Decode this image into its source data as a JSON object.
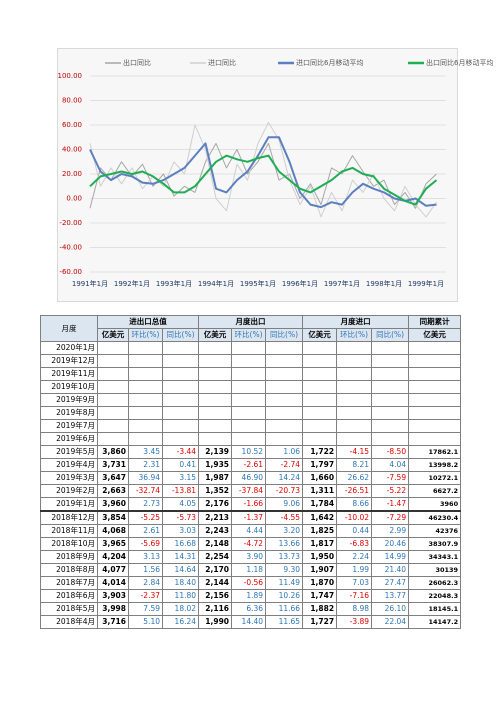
{
  "chart_data": {
    "type": "line",
    "categories": [
      "1991年1月",
      null,
      null,
      null,
      "1992年1月",
      null,
      null,
      null,
      "1993年1月",
      null,
      null,
      null,
      "1994年1月",
      null,
      null,
      null,
      "1995年1月",
      null,
      null,
      null,
      "1996年1月",
      null,
      null,
      null,
      "1997年1月",
      null,
      null,
      null,
      "1998年1月",
      null,
      null,
      null,
      "1999年1月",
      null
    ],
    "series": [
      {
        "name": "出口同比",
        "color": "#a6a6a6",
        "width": 1,
        "values": [
          -8,
          25,
          15,
          30,
          18,
          28,
          10,
          20,
          2,
          10,
          5,
          30,
          45,
          25,
          40,
          20,
          30,
          45,
          15,
          20,
          0,
          12,
          -5,
          25,
          20,
          35,
          22,
          10,
          15,
          -5,
          5,
          -8,
          12,
          20
        ]
      },
      {
        "name": "进口同比",
        "color": "#cfcfcf",
        "width": 1,
        "values": [
          45,
          10,
          25,
          12,
          25,
          8,
          18,
          10,
          30,
          20,
          60,
          40,
          0,
          -10,
          28,
          15,
          45,
          62,
          48,
          15,
          -5,
          10,
          -15,
          5,
          -10,
          15,
          5,
          20,
          0,
          -10,
          10,
          -5,
          -15,
          -3
        ]
      },
      {
        "name": "进口同比6月移动平均",
        "color": "#5b7fbf",
        "width": 2,
        "values": [
          40,
          22,
          15,
          20,
          18,
          13,
          12,
          15,
          20,
          25,
          35,
          45,
          8,
          5,
          15,
          22,
          35,
          50,
          50,
          30,
          5,
          -5,
          -7,
          -3,
          -5,
          5,
          12,
          8,
          5,
          0,
          -2,
          0,
          -6,
          -5
        ]
      },
      {
        "name": "出口同比6月移动平均",
        "color": "#1fae54",
        "width": 2,
        "values": [
          10,
          18,
          20,
          22,
          20,
          22,
          18,
          12,
          5,
          5,
          10,
          20,
          30,
          35,
          32,
          30,
          33,
          35,
          22,
          15,
          8,
          5,
          10,
          15,
          22,
          25,
          20,
          18,
          8,
          3,
          -2,
          -5,
          8,
          15
        ]
      }
    ],
    "ylim": [
      -60,
      100
    ],
    "yticks": [
      {
        "value": 100,
        "label": "100.00"
      },
      {
        "value": 80,
        "label": "80.00"
      },
      {
        "value": 60,
        "label": "60.00"
      },
      {
        "value": 40,
        "label": "40.00"
      },
      {
        "value": 20,
        "label": "20.00"
      },
      {
        "value": 0,
        "label": "0.00"
      },
      {
        "value": -20,
        "label": "-20.00"
      },
      {
        "value": -40,
        "label": "-40.00"
      },
      {
        "value": -60,
        "label": "-60.00"
      }
    ],
    "grid": true,
    "legend": "top"
  },
  "table": {
    "corner": "月度",
    "groups": [
      "进出口总值",
      "月度出口",
      "月度进口",
      "同期累计"
    ],
    "subheaders": [
      "亿美元",
      "环比(%)",
      "同比(%)",
      "亿美元",
      "环比(%)",
      "同比(%)",
      "亿美元",
      "环比(%)",
      "同比(%)",
      "亿美元"
    ],
    "rows": [
      {
        "month": "2020年1月"
      },
      {
        "month": "2019年12月"
      },
      {
        "month": "2019年11月"
      },
      {
        "month": "2019年10月"
      },
      {
        "month": "2019年9月"
      },
      {
        "month": "2019年8月"
      },
      {
        "month": "2019年7月"
      },
      {
        "month": "2019年6月"
      },
      {
        "month": "2019年5月",
        "cells": [
          "3,860",
          "3.45",
          "-3.44",
          "2,139",
          "10.52",
          "1.06",
          "1,722",
          "-4.15",
          "-8.50",
          "17862.1"
        ]
      },
      {
        "month": "2019年4月",
        "cells": [
          "3,731",
          "2.31",
          "0.41",
          "1,935",
          "-2.61",
          "-2.74",
          "1,797",
          "8.21",
          "4.04",
          "13998.2"
        ]
      },
      {
        "month": "2019年3月",
        "cells": [
          "3,647",
          "36.94",
          "3.15",
          "1,987",
          "46.90",
          "14.24",
          "1,660",
          "26.62",
          "-7.59",
          "10272.1"
        ]
      },
      {
        "month": "2019年2月",
        "cells": [
          "2,663",
          "-32.74",
          "-13.81",
          "1,352",
          "-37.84",
          "-20.73",
          "1,311",
          "-26.51",
          "-5.22",
          "6627.2"
        ]
      },
      {
        "month": "2019年1月",
        "cells": [
          "3,960",
          "2.73",
          "4.05",
          "2,176",
          "-1.66",
          "9.06",
          "1,784",
          "8.66",
          "-1.47",
          "3960"
        ]
      },
      {
        "month": "2018年12月",
        "cells": [
          "3,854",
          "-5.25",
          "-5.73",
          "2,213",
          "-1.37",
          "-4.55",
          "1,642",
          "-10.02",
          "-7.29",
          "46230.4"
        ]
      },
      {
        "month": "2018年11月",
        "cells": [
          "4,068",
          "2.61",
          "3.03",
          "2,243",
          "4.44",
          "3.20",
          "1,825",
          "0.44",
          "2.99",
          "42376"
        ]
      },
      {
        "month": "2018年10月",
        "cells": [
          "3,965",
          "-5.69",
          "16.68",
          "2,148",
          "-4.72",
          "13.66",
          "1,817",
          "-6.83",
          "20.46",
          "38307.9"
        ]
      },
      {
        "month": "2018年9月",
        "cells": [
          "4,204",
          "3.13",
          "14.31",
          "2,254",
          "3.90",
          "13.73",
          "1,950",
          "2.24",
          "14.99",
          "34343.1"
        ]
      },
      {
        "month": "2018年8月",
        "cells": [
          "4,077",
          "1.56",
          "14.64",
          "2,170",
          "1.18",
          "9.30",
          "1,907",
          "1.99",
          "21.40",
          "30139"
        ]
      },
      {
        "month": "2018年7月",
        "cells": [
          "4,014",
          "2.84",
          "18.40",
          "2,144",
          "-0.56",
          "11.49",
          "1,870",
          "7.03",
          "27.47",
          "26062.3"
        ]
      },
      {
        "month": "2018年6月",
        "cells": [
          "3,903",
          "-2.37",
          "11.80",
          "2,156",
          "1.89",
          "10.26",
          "1,747",
          "-7.16",
          "13.77",
          "22048.3"
        ]
      },
      {
        "month": "2018年5月",
        "cells": [
          "3,998",
          "7.59",
          "18.02",
          "2,116",
          "6.36",
          "11.66",
          "1,882",
          "8.98",
          "26.10",
          "18145.1"
        ]
      },
      {
        "month": "2018年4月",
        "cells": [
          "3,716",
          "5.10",
          "16.24",
          "1,990",
          "14.40",
          "11.65",
          "1,727",
          "-3.89",
          "22.04",
          "14147.2"
        ]
      }
    ]
  }
}
